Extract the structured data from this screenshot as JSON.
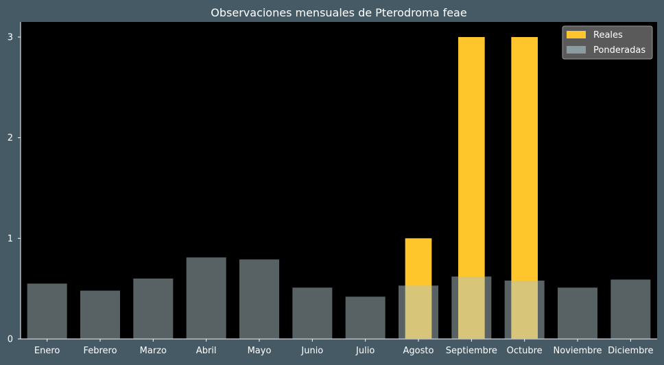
{
  "chart_data": {
    "type": "bar",
    "title": "Observaciones mensuales de Pterodroma feae",
    "xlabel": "",
    "ylabel": "",
    "categories": [
      "Enero",
      "Febrero",
      "Marzo",
      "Abril",
      "Mayo",
      "Junio",
      "Julio",
      "Agosto",
      "Septiembre",
      "Octubre",
      "Noviembre",
      "Diciembre"
    ],
    "series": [
      {
        "name": "Reales",
        "values": [
          0,
          0,
          0,
          0,
          0,
          0,
          0,
          1,
          3,
          3,
          0,
          0
        ]
      },
      {
        "name": "Ponderadas",
        "values": [
          0.55,
          0.48,
          0.6,
          0.81,
          0.79,
          0.51,
          0.42,
          0.53,
          0.62,
          0.58,
          0.51,
          0.59
        ]
      }
    ],
    "ylim": [
      0,
      3.15
    ],
    "yticks": [
      0,
      1,
      2,
      3
    ],
    "grid": false,
    "legend_position": "top-right"
  },
  "colors": {
    "page_background": "#455a64",
    "plot_background": "#000000",
    "reales": "#ffc62c",
    "ponderadas": "#b0c4c8",
    "text": "#ffffff",
    "legend_background": "#5a5a5a"
  }
}
